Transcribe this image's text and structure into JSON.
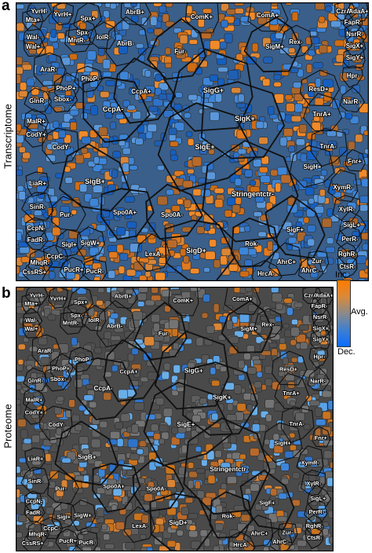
{
  "panels": [
    {
      "id": "a",
      "letter": "a",
      "side_label": "Transcriptome",
      "mode": "transcriptome",
      "regions": [
        {
          "label": "YvrH-"
        },
        {
          "label": "Mta+"
        },
        {
          "label": "YvrH+"
        },
        {
          "label": "Wal-"
        },
        {
          "label": "Wal+"
        },
        {
          "label": "Spx+"
        },
        {
          "label": "Spx-"
        },
        {
          "label": "IolR-"
        },
        {
          "label": "MntR-"
        },
        {
          "label": "AbrB+"
        },
        {
          "label": "AbrB-"
        },
        {
          "label": "ComK+"
        },
        {
          "label": "Fur-"
        },
        {
          "label": "ComA+"
        },
        {
          "label": "Rex-"
        },
        {
          "label": "CzrA+"
        },
        {
          "label": "AdaA+"
        },
        {
          "label": "FapR-"
        },
        {
          "label": "NsrR-"
        },
        {
          "label": "SigX+"
        },
        {
          "label": "SigY+"
        },
        {
          "label": "SigM+"
        },
        {
          "label": "Hpr-"
        },
        {
          "label": "ResD+"
        },
        {
          "label": "NarR-"
        },
        {
          "label": "AraR-"
        },
        {
          "label": "PhoP+"
        },
        {
          "label": "PhoP-"
        },
        {
          "label": "GlnR-"
        },
        {
          "label": "Sbox-"
        },
        {
          "label": "MalR+"
        },
        {
          "label": "CodY+"
        },
        {
          "label": "CodY-"
        },
        {
          "label": "CcpA+"
        },
        {
          "label": "CcpA-"
        },
        {
          "label": "SigG+"
        },
        {
          "label": "SigK+"
        },
        {
          "label": "SigE+"
        },
        {
          "label": "TnrA+"
        },
        {
          "label": "TnrA-"
        },
        {
          "label": "Fnr+"
        },
        {
          "label": "LiaR+"
        },
        {
          "label": "SinR-"
        },
        {
          "label": "SigB+"
        },
        {
          "label": "SigH+"
        },
        {
          "label": "XymR-"
        },
        {
          "label": "CcpN-"
        },
        {
          "label": "Pur-"
        },
        {
          "label": "Spo0A+"
        },
        {
          "label": "Spo0A-"
        },
        {
          "label": "Stringentctr-"
        },
        {
          "label": "XylR-"
        },
        {
          "label": "SigL+"
        },
        {
          "label": "FadR-"
        },
        {
          "label": "SigI+"
        },
        {
          "label": "CcpC-"
        },
        {
          "label": "SigW+"
        },
        {
          "label": "MhqR-"
        },
        {
          "label": "PucR+"
        },
        {
          "label": "CssRS+"
        },
        {
          "label": "PucR-"
        },
        {
          "label": "LexA-"
        },
        {
          "label": "SigD+"
        },
        {
          "label": "Rok-"
        },
        {
          "label": "SigF+"
        },
        {
          "label": "PerR-"
        },
        {
          "label": "AhrC+"
        },
        {
          "label": "HrcA-"
        },
        {
          "label": "AhrC-"
        },
        {
          "label": "Zur-"
        },
        {
          "label": "RghR-"
        },
        {
          "label": "CtsR-"
        }
      ]
    },
    {
      "id": "b",
      "letter": "b",
      "side_label": "Proteome",
      "mode": "proteome",
      "regions": [
        {
          "label": "YvrH-"
        },
        {
          "label": "Mta+"
        },
        {
          "label": "YvrH+"
        },
        {
          "label": "Wal-"
        },
        {
          "label": "Wal+"
        },
        {
          "label": "Spx+"
        },
        {
          "label": "Spx-"
        },
        {
          "label": "IolR-"
        },
        {
          "label": "MntR-"
        },
        {
          "label": "AbrB+"
        },
        {
          "label": "AbrB-"
        },
        {
          "label": "ComK+"
        },
        {
          "label": "Fur-"
        },
        {
          "label": "ComA+"
        },
        {
          "label": "Rex-"
        },
        {
          "label": "CzrA+"
        },
        {
          "label": "AdaA+"
        },
        {
          "label": "FapR-"
        },
        {
          "label": "NsrR-"
        },
        {
          "label": "SigX+"
        },
        {
          "label": "SigY+"
        },
        {
          "label": "SigM+"
        },
        {
          "label": "Hpr-"
        },
        {
          "label": "ResD+"
        },
        {
          "label": "NarR-"
        },
        {
          "label": "AraR-"
        },
        {
          "label": "PhoP+"
        },
        {
          "label": "PhoP-"
        },
        {
          "label": "GlnR-"
        },
        {
          "label": "Sbox-"
        },
        {
          "label": "MalR+"
        },
        {
          "label": "CodY+"
        },
        {
          "label": "CodY-"
        },
        {
          "label": "CcpA+"
        },
        {
          "label": "CcpA-"
        },
        {
          "label": "SigG+"
        },
        {
          "label": "SigK+"
        },
        {
          "label": "SigE+"
        },
        {
          "label": "TnrA+"
        },
        {
          "label": "TnrA-"
        },
        {
          "label": "Fnr+"
        },
        {
          "label": "LiaR+"
        },
        {
          "label": "SinR-"
        },
        {
          "label": "SigB+"
        },
        {
          "label": "SigH+"
        },
        {
          "label": "XymR-"
        },
        {
          "label": "CcpN-"
        },
        {
          "label": "Pur-"
        },
        {
          "label": "Spo0A+"
        },
        {
          "label": "Spo0A-"
        },
        {
          "label": "Stringentctr-"
        },
        {
          "label": "XylR-"
        },
        {
          "label": "SigL+"
        },
        {
          "label": "FadR-"
        },
        {
          "label": "SigI+"
        },
        {
          "label": "CcpC-"
        },
        {
          "label": "SigW+"
        },
        {
          "label": "MhqR-"
        },
        {
          "label": "PucR+"
        },
        {
          "label": "CssRS+"
        },
        {
          "label": "PucR-"
        },
        {
          "label": "LexA-"
        },
        {
          "label": "SigD+"
        },
        {
          "label": "Rok-"
        },
        {
          "label": "SigF+"
        },
        {
          "label": "PerR-"
        },
        {
          "label": "AhrC+"
        },
        {
          "label": "HrcA-"
        },
        {
          "label": "AhrC-"
        },
        {
          "label": "Zur-"
        },
        {
          "label": "RghR-"
        },
        {
          "label": "CtsR-"
        }
      ]
    }
  ],
  "legend": {
    "top_label": "Inc.",
    "mid_label": "Avg.",
    "bottom_label": "Dec.",
    "colors": {
      "increase": "#ff7a00",
      "average": "#8a8a8a",
      "decrease": "#0a6cff"
    }
  }
}
